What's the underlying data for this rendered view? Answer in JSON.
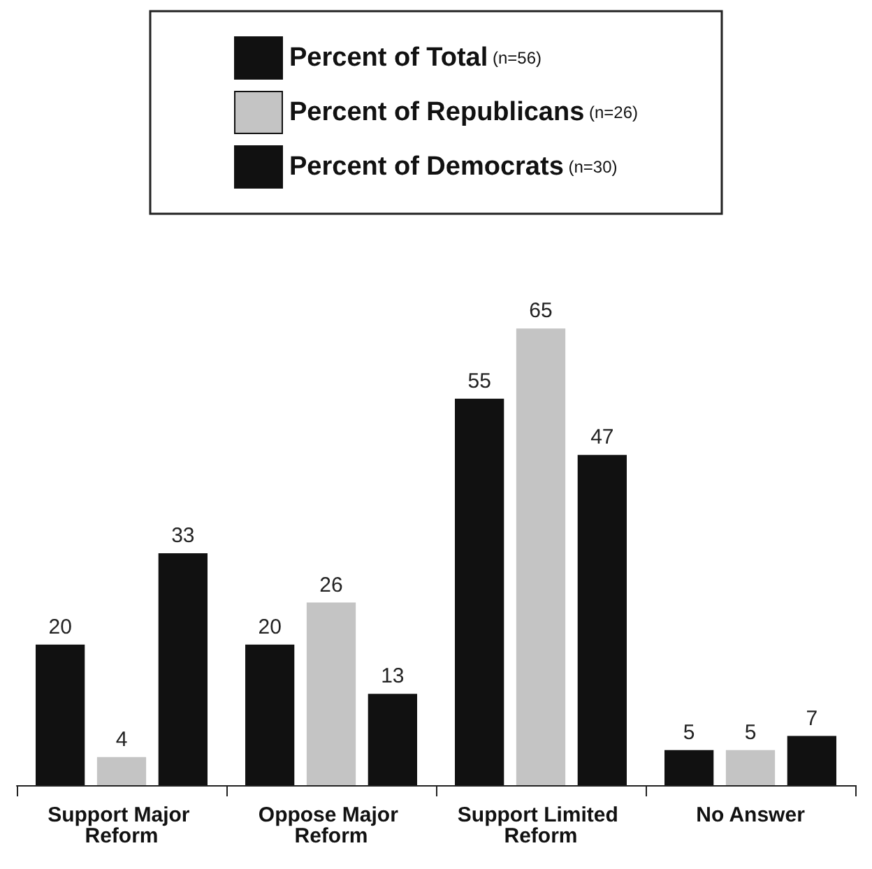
{
  "chart_data": {
    "type": "bar",
    "categories": [
      "Support Major Reform",
      "Oppose Major Reform",
      "Support Limited Reform",
      "No Answer"
    ],
    "series": [
      {
        "name": "Percent of Total (n=56)",
        "color": "#111111",
        "values": [
          20,
          20,
          55,
          5
        ]
      },
      {
        "name": "Percent of Republicans (n=26)",
        "color": "#c4c4c4",
        "values": [
          4,
          26,
          65,
          5
        ]
      },
      {
        "name": "Percent of Democrats (n=30)",
        "color": "#111111",
        "values": [
          33,
          13,
          47,
          7
        ]
      }
    ],
    "data_labels": true,
    "legend": "top",
    "grid": false
  }
}
